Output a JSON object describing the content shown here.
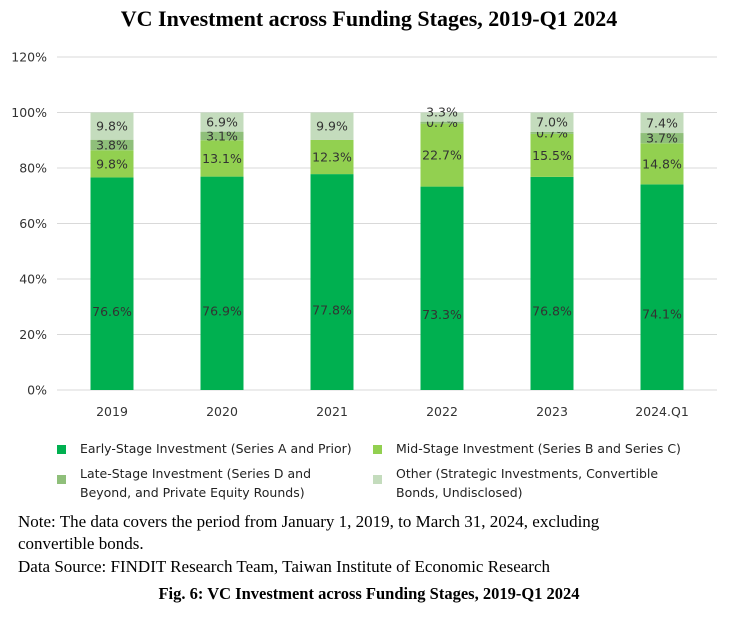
{
  "chart_data": {
    "type": "bar",
    "stacked": true,
    "title": "VC Investment across Funding Stages, 2019-Q1 2024",
    "categories": [
      "2019",
      "2020",
      "2021",
      "2022",
      "2023",
      "2024.Q1"
    ],
    "ylim": [
      0,
      120
    ],
    "yticks": [
      "0%",
      "20%",
      "40%",
      "60%",
      "80%",
      "100%",
      "120%"
    ],
    "grid": true,
    "legend_position": "bottom",
    "series": [
      {
        "name": "Early-Stage Investment (Series A and Prior)",
        "color": "#00b050",
        "values": [
          76.6,
          76.9,
          77.8,
          73.3,
          76.8,
          74.1
        ],
        "labels": [
          "76.6%",
          "76.9%",
          "77.8%",
          "73.3%",
          "76.8%",
          "74.1%"
        ]
      },
      {
        "name": "Mid-Stage Investment (Series B and Series C)",
        "color": "#92d050",
        "values": [
          9.8,
          13.1,
          12.3,
          22.7,
          15.5,
          14.8
        ],
        "labels": [
          "9.8%",
          "13.1%",
          "12.3%",
          "22.7%",
          "15.5%",
          "14.8%"
        ]
      },
      {
        "name": "Late-Stage Investment (Series D and Beyond, and Private Equity Rounds)",
        "color": "#8fbf7a",
        "values": [
          3.8,
          3.1,
          0,
          0.7,
          0.7,
          3.7
        ],
        "labels": [
          "3.8%",
          "3.1%",
          "",
          "0.7%",
          "0.7%",
          "3.7%"
        ]
      },
      {
        "name": "Other (Strategic Investments, Convertible Bonds, Undisclosed)",
        "color": "#c4dcbd",
        "values": [
          9.8,
          6.9,
          9.9,
          3.3,
          7.0,
          7.4
        ],
        "labels": [
          "9.8%",
          "6.9%",
          "9.9%",
          "3.3%",
          "7.0%",
          "7.4%"
        ]
      }
    ]
  },
  "legend": {
    "early": "Early-Stage Investment (Series A and Prior)",
    "mid": "Mid-Stage Investment (Series B and Series C)",
    "late_line1": "Late-Stage Investment (Series D and",
    "late_line2": "Beyond, and Private Equity Rounds)",
    "other_line1": "Other (Strategic Investments, Convertible",
    "other_line2": "Bonds, Undisclosed)"
  },
  "note_line1": "Note: The data covers the period from January 1, 2019, to March 31, 2024, excluding",
  "note_line2": "convertible bonds.",
  "source": "Data Source: FINDIT Research Team, Taiwan Institute of Economic Research",
  "caption": "Fig. 6: VC Investment across Funding Stages, 2019-Q1 2024"
}
